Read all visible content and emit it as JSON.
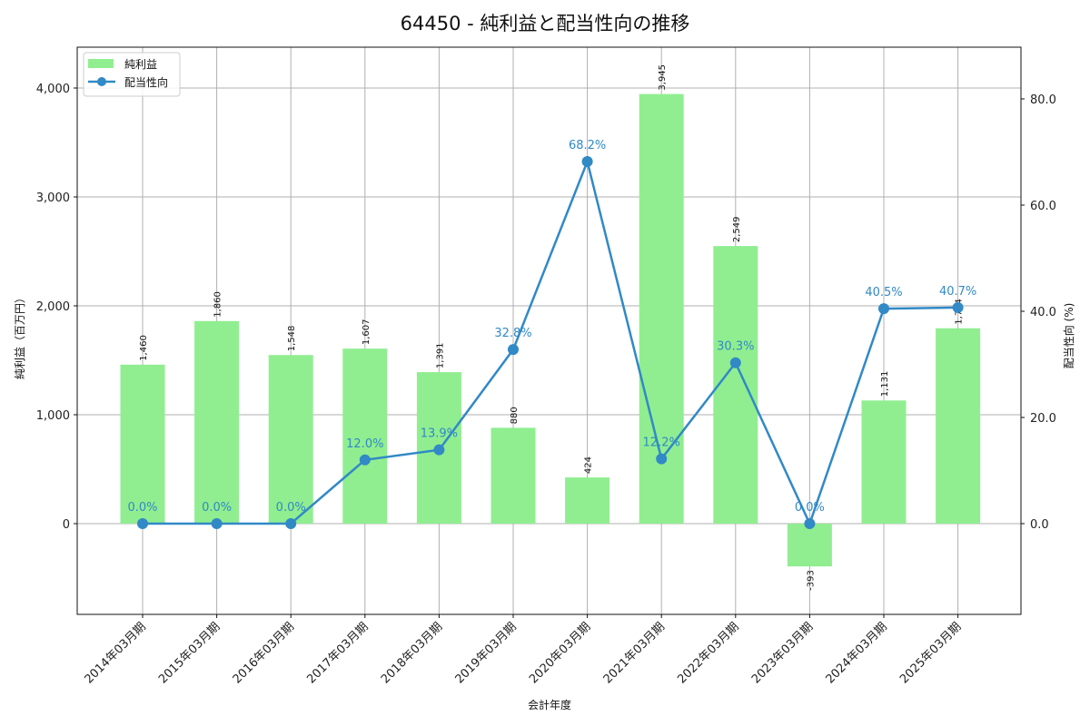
{
  "chart_data": {
    "type": "bar+line",
    "title": "64450 - 純利益と配当性向の推移",
    "xlabel": "会計年度",
    "ylabel_left": "純利益（百万円）",
    "ylabel_right": "配当性向 (%)",
    "categories": [
      "2014年03月期",
      "2015年03月期",
      "2016年03月期",
      "2017年03月期",
      "2018年03月期",
      "2019年03月期",
      "2020年03月期",
      "2021年03月期",
      "2022年03月期",
      "2023年03月期",
      "2024年03月期",
      "2025年03月期"
    ],
    "series": [
      {
        "name": "純利益",
        "type": "bar",
        "axis": "left",
        "color": "#90ee90",
        "values": [
          1460,
          1860,
          1548,
          1607,
          1391,
          880,
          424,
          3945,
          2549,
          -393,
          1131,
          1794
        ],
        "labels": [
          "1,460",
          "1,860",
          "1,548",
          "1,607",
          "1,391",
          "880",
          "424",
          "3,945",
          "2,549",
          "-393",
          "1,131",
          "1,794"
        ]
      },
      {
        "name": "配当性向",
        "type": "line",
        "axis": "right",
        "color": "#3189c6",
        "values": [
          0.0,
          0.0,
          0.0,
          12.0,
          13.9,
          32.8,
          68.2,
          12.2,
          30.3,
          0.0,
          40.5,
          40.7
        ],
        "labels": [
          "0.0%",
          "0.0%",
          "0.0%",
          "12.0%",
          "13.9%",
          "32.8%",
          "68.2%",
          "12.2%",
          "30.3%",
          "0.0%",
          "40.5%",
          "40.7%"
        ]
      }
    ],
    "ylim_left": [
      -833,
      4375
    ],
    "ylim_right": [
      -17,
      89
    ],
    "yticks_left": [
      0,
      1000,
      2000,
      3000,
      4000
    ],
    "yticks_left_labels": [
      "0",
      "1,000",
      "2,000",
      "3,000",
      "4,000"
    ],
    "yticks_right": [
      0,
      20,
      40,
      60,
      80
    ],
    "yticks_right_labels": [
      "0.0",
      "20.0",
      "40.0",
      "60.0",
      "80.0"
    ],
    "grid": true,
    "legend_position": "upper left"
  }
}
